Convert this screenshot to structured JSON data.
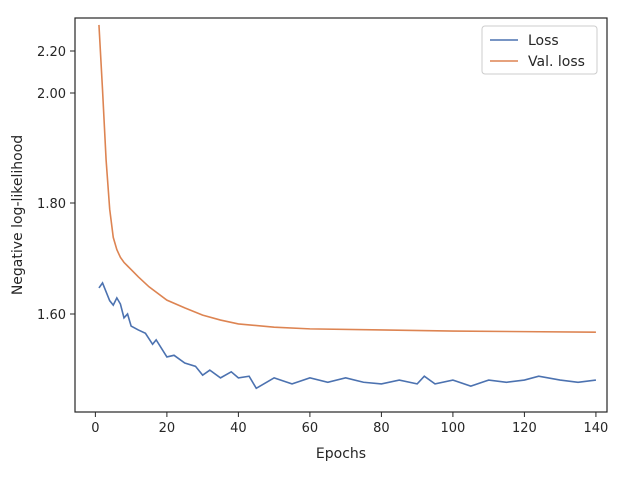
{
  "chart_data": {
    "type": "line",
    "xlabel": "Epochs",
    "ylabel": "Negative log-likelihood",
    "xlim": [
      -5.7,
      143.1
    ],
    "xticks": [
      0,
      20,
      40,
      60,
      80,
      100,
      120,
      140
    ],
    "ylim": [
      1.422,
      2.357
    ],
    "yticks": [
      {
        "value": 1.6,
        "label": "1.60"
      },
      {
        "value": 1.8,
        "label": "1.80"
      },
      {
        "value": 2.0,
        "label": "2.00"
      },
      {
        "value": 2.2,
        "label": "2.20"
      }
    ],
    "legend": "upper right",
    "series": [
      {
        "name": "Loss",
        "color": "#4c72b0",
        "x": [
          1,
          2,
          3,
          4,
          5,
          6,
          7,
          8,
          9,
          10,
          12,
          14,
          16,
          17,
          20,
          22,
          25,
          28,
          30,
          32,
          35,
          38,
          40,
          43,
          45,
          50,
          55,
          60,
          65,
          70,
          75,
          80,
          85,
          90,
          92,
          95,
          100,
          105,
          110,
          115,
          120,
          124,
          130,
          135,
          140
        ],
        "values": [
          1.647,
          1.656,
          1.64,
          1.624,
          1.616,
          1.629,
          1.618,
          1.593,
          1.6,
          1.578,
          1.571,
          1.565,
          1.545,
          1.553,
          1.522,
          1.525,
          1.511,
          1.505,
          1.489,
          1.498,
          1.484,
          1.495,
          1.484,
          1.487,
          1.465,
          1.484,
          1.473,
          1.484,
          1.476,
          1.484,
          1.476,
          1.473,
          1.48,
          1.473,
          1.487,
          1.473,
          1.48,
          1.469,
          1.48,
          1.476,
          1.48,
          1.487,
          1.48,
          1.476,
          1.48
        ]
      },
      {
        "name": "Val. loss",
        "color": "#dd8452",
        "x": [
          1,
          2,
          3,
          4,
          5,
          6,
          7,
          8,
          10,
          12,
          15,
          20,
          25,
          30,
          35,
          40,
          50,
          60,
          80,
          100,
          120,
          140
        ],
        "values": [
          2.324,
          2.015,
          1.878,
          1.789,
          1.738,
          1.716,
          1.702,
          1.693,
          1.68,
          1.667,
          1.649,
          1.625,
          1.611,
          1.598,
          1.589,
          1.582,
          1.576,
          1.573,
          1.571,
          1.569,
          1.568,
          1.567
        ]
      }
    ]
  }
}
